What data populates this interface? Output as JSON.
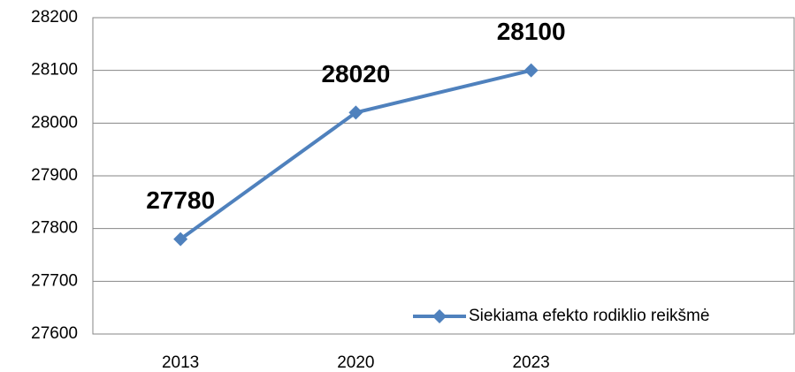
{
  "chart_data": {
    "type": "line",
    "categories": [
      "2013",
      "2020",
      "2023",
      null
    ],
    "series": [
      {
        "name": "Siekiama efekto rodiklio reikšmė",
        "color": "#4f81bd",
        "values": [
          27780,
          28020,
          28100,
          null
        ]
      }
    ],
    "ylim": [
      27600,
      28200
    ],
    "yticks": [
      27600,
      27700,
      27800,
      27900,
      28000,
      28100,
      28200
    ],
    "grid": true,
    "legend": "lower right",
    "data_labels": true
  }
}
